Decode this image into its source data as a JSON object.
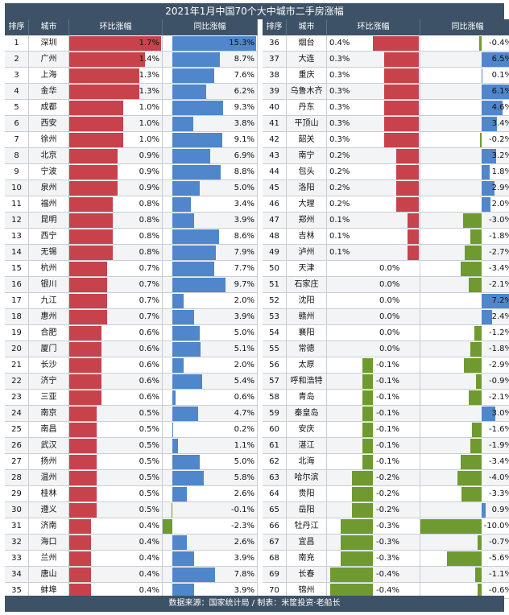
{
  "chart_data": {
    "type": "table",
    "title": "2021年1月中国70个大中城市二手房涨幅",
    "footer": "数据来源：国家统计局 / 制表：米筐投资·老船长",
    "columns": [
      "排序",
      "城市",
      "环比涨幅",
      "同比涨幅"
    ],
    "colors": {
      "header_bg": "#3d5266",
      "mom_positive": "#c8424c",
      "mom_negative": "#6f9a2f",
      "yoy_positive": "#4f86cc",
      "yoy_negative": "#6f9a2f"
    },
    "rows": [
      {
        "rank": 1,
        "city": "深圳",
        "mom": 1.7,
        "yoy": 15.3
      },
      {
        "rank": 2,
        "city": "广州",
        "mom": 1.4,
        "yoy": 8.7
      },
      {
        "rank": 3,
        "city": "上海",
        "mom": 1.3,
        "yoy": 7.6
      },
      {
        "rank": 4,
        "city": "金华",
        "mom": 1.3,
        "yoy": 6.2
      },
      {
        "rank": 5,
        "city": "成都",
        "mom": 1.0,
        "yoy": 9.3
      },
      {
        "rank": 6,
        "city": "西安",
        "mom": 1.0,
        "yoy": 3.8
      },
      {
        "rank": 7,
        "city": "徐州",
        "mom": 1.0,
        "yoy": 9.1
      },
      {
        "rank": 8,
        "city": "北京",
        "mom": 0.9,
        "yoy": 6.9
      },
      {
        "rank": 9,
        "city": "宁波",
        "mom": 0.9,
        "yoy": 8.8
      },
      {
        "rank": 10,
        "city": "泉州",
        "mom": 0.9,
        "yoy": 5.0
      },
      {
        "rank": 11,
        "city": "福州",
        "mom": 0.8,
        "yoy": 3.4
      },
      {
        "rank": 12,
        "city": "昆明",
        "mom": 0.8,
        "yoy": 3.9
      },
      {
        "rank": 13,
        "city": "西宁",
        "mom": 0.8,
        "yoy": 8.6
      },
      {
        "rank": 14,
        "city": "无锡",
        "mom": 0.8,
        "yoy": 7.9
      },
      {
        "rank": 15,
        "city": "杭州",
        "mom": 0.7,
        "yoy": 7.7
      },
      {
        "rank": 16,
        "city": "银川",
        "mom": 0.7,
        "yoy": 9.7
      },
      {
        "rank": 17,
        "city": "九江",
        "mom": 0.7,
        "yoy": 2.0
      },
      {
        "rank": 18,
        "city": "惠州",
        "mom": 0.7,
        "yoy": 3.9
      },
      {
        "rank": 19,
        "city": "合肥",
        "mom": 0.6,
        "yoy": 5.0
      },
      {
        "rank": 20,
        "city": "厦门",
        "mom": 0.6,
        "yoy": 5.1
      },
      {
        "rank": 21,
        "city": "长沙",
        "mom": 0.6,
        "yoy": 2.0
      },
      {
        "rank": 22,
        "city": "济宁",
        "mom": 0.6,
        "yoy": 5.4
      },
      {
        "rank": 23,
        "city": "三亚",
        "mom": 0.6,
        "yoy": 0.6
      },
      {
        "rank": 24,
        "city": "南京",
        "mom": 0.5,
        "yoy": 4.7
      },
      {
        "rank": 25,
        "city": "南昌",
        "mom": 0.5,
        "yoy": 0.2
      },
      {
        "rank": 26,
        "city": "武汉",
        "mom": 0.5,
        "yoy": 1.1
      },
      {
        "rank": 27,
        "city": "扬州",
        "mom": 0.5,
        "yoy": 5.0
      },
      {
        "rank": 28,
        "city": "温州",
        "mom": 0.5,
        "yoy": 5.8
      },
      {
        "rank": 29,
        "city": "桂林",
        "mom": 0.5,
        "yoy": 2.6
      },
      {
        "rank": 30,
        "city": "遵义",
        "mom": 0.5,
        "yoy": -0.1
      },
      {
        "rank": 31,
        "city": "济南",
        "mom": 0.4,
        "yoy": -2.3
      },
      {
        "rank": 32,
        "city": "海口",
        "mom": 0.4,
        "yoy": 2.6
      },
      {
        "rank": 33,
        "city": "兰州",
        "mom": 0.4,
        "yoy": 3.9
      },
      {
        "rank": 34,
        "city": "唐山",
        "mom": 0.4,
        "yoy": 7.8
      },
      {
        "rank": 35,
        "city": "蚌埠",
        "mom": 0.4,
        "yoy": 3.9
      },
      {
        "rank": 36,
        "city": "烟台",
        "mom": 0.4,
        "yoy": -0.4
      },
      {
        "rank": 37,
        "city": "大连",
        "mom": 0.3,
        "yoy": 6.5
      },
      {
        "rank": 38,
        "city": "重庆",
        "mom": 0.3,
        "yoy": 0.1
      },
      {
        "rank": 39,
        "city": "乌鲁木齐",
        "mom": 0.3,
        "yoy": 6.1
      },
      {
        "rank": 40,
        "city": "丹东",
        "mom": 0.3,
        "yoy": 4.6
      },
      {
        "rank": 41,
        "city": "平顶山",
        "mom": 0.3,
        "yoy": 3.4
      },
      {
        "rank": 42,
        "city": "韶关",
        "mom": 0.3,
        "yoy": -0.2
      },
      {
        "rank": 43,
        "city": "南宁",
        "mom": 0.2,
        "yoy": 3.2
      },
      {
        "rank": 44,
        "city": "包头",
        "mom": 0.2,
        "yoy": 1.8
      },
      {
        "rank": 45,
        "city": "洛阳",
        "mom": 0.2,
        "yoy": 2.9
      },
      {
        "rank": 46,
        "city": "大理",
        "mom": 0.2,
        "yoy": 2.0
      },
      {
        "rank": 47,
        "city": "郑州",
        "mom": 0.1,
        "yoy": -3.0
      },
      {
        "rank": 48,
        "city": "吉林",
        "mom": 0.1,
        "yoy": -1.8
      },
      {
        "rank": 49,
        "city": "泸州",
        "mom": 0.1,
        "yoy": -2.7
      },
      {
        "rank": 50,
        "city": "天津",
        "mom": 0.0,
        "yoy": -3.4
      },
      {
        "rank": 51,
        "city": "石家庄",
        "mom": 0.0,
        "yoy": -2.1
      },
      {
        "rank": 52,
        "city": "沈阳",
        "mom": 0.0,
        "yoy": 7.2
      },
      {
        "rank": 53,
        "city": "赣州",
        "mom": 0.0,
        "yoy": 2.4
      },
      {
        "rank": 54,
        "city": "襄阳",
        "mom": 0.0,
        "yoy": -1.2
      },
      {
        "rank": 55,
        "city": "常德",
        "mom": 0.0,
        "yoy": -1.8
      },
      {
        "rank": 56,
        "city": "太原",
        "mom": -0.1,
        "yoy": -2.9
      },
      {
        "rank": 57,
        "city": "呼和浩特",
        "mom": -0.1,
        "yoy": -0.9
      },
      {
        "rank": 58,
        "city": "青岛",
        "mom": -0.1,
        "yoy": -2.1
      },
      {
        "rank": 59,
        "city": "秦皇岛",
        "mom": -0.1,
        "yoy": 3.0
      },
      {
        "rank": 60,
        "city": "安庆",
        "mom": -0.1,
        "yoy": -1.6
      },
      {
        "rank": 61,
        "city": "湛江",
        "mom": -0.1,
        "yoy": -1.9
      },
      {
        "rank": 62,
        "city": "北海",
        "mom": -0.1,
        "yoy": -3.4
      },
      {
        "rank": 63,
        "city": "哈尔滨",
        "mom": -0.2,
        "yoy": -4.0
      },
      {
        "rank": 64,
        "city": "贵阳",
        "mom": -0.2,
        "yoy": -3.3
      },
      {
        "rank": 65,
        "city": "岳阳",
        "mom": -0.2,
        "yoy": 0.9
      },
      {
        "rank": 66,
        "city": "牡丹江",
        "mom": -0.3,
        "yoy": -10.0
      },
      {
        "rank": 67,
        "city": "宜昌",
        "mom": -0.3,
        "yoy": -0.7
      },
      {
        "rank": 68,
        "city": "南充",
        "mom": -0.3,
        "yoy": -5.6
      },
      {
        "rank": 69,
        "city": "长春",
        "mom": -0.4,
        "yoy": -1.1
      },
      {
        "rank": 70,
        "city": "锦州",
        "mom": -0.4,
        "yoy": -0.6
      }
    ]
  }
}
